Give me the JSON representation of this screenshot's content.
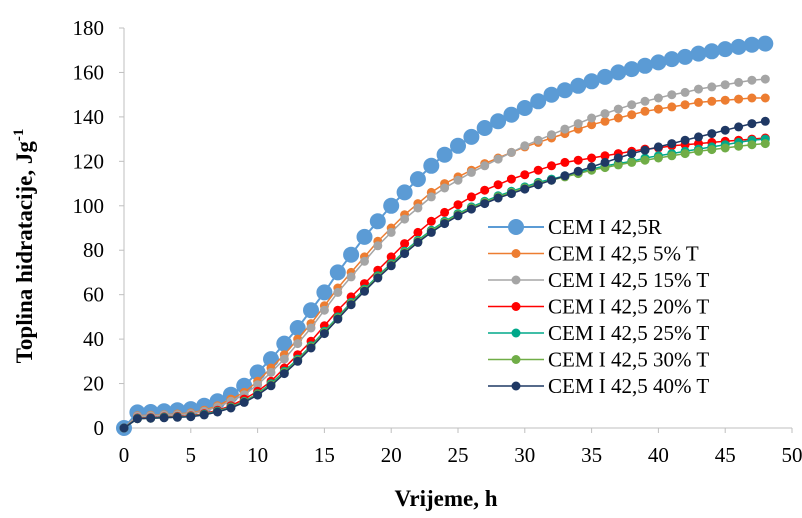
{
  "chart_data": {
    "type": "line",
    "xlabel": "Vrijeme, h",
    "ylabel": "Toplina hidratacije, Jg",
    "ylabel_superscript": "-1",
    "xlim": [
      0,
      50
    ],
    "ylim": [
      0,
      180
    ],
    "x_ticks": [
      "0",
      "5",
      "10",
      "15",
      "20",
      "25",
      "30",
      "35",
      "40",
      "45",
      "50"
    ],
    "y_ticks": [
      "0",
      "20",
      "40",
      "60",
      "80",
      "100",
      "120",
      "140",
      "160",
      "180"
    ],
    "grid": false,
    "legend_position": "center-right",
    "x": [
      0,
      1,
      2,
      3,
      4,
      5,
      6,
      7,
      8,
      9,
      10,
      11,
      12,
      13,
      14,
      15,
      16,
      17,
      18,
      19,
      20,
      21,
      22,
      23,
      24,
      25,
      26,
      27,
      28,
      29,
      30,
      31,
      32,
      33,
      34,
      35,
      36,
      37,
      38,
      39,
      40,
      41,
      42,
      43,
      44,
      45,
      46,
      47,
      48
    ],
    "series": [
      {
        "name": "CEM I 42,5R",
        "color": "#5b9bd5",
        "marker_radius": 8,
        "values": [
          0,
          7,
          7.2,
          7.5,
          8,
          8.5,
          10,
          12,
          15,
          19,
          25,
          31,
          38,
          45,
          53,
          61,
          70,
          78,
          86,
          93,
          100,
          106,
          112,
          118,
          123,
          127,
          131,
          135,
          138,
          141,
          144,
          147,
          150,
          152,
          154,
          156,
          158,
          160,
          161.5,
          163,
          164.5,
          166,
          167,
          168.5,
          169.5,
          170.5,
          171.5,
          172.5,
          173
        ]
      },
      {
        "name": "CEM I 42,5 5% T",
        "color": "#ed7d31",
        "marker_radius": 4.5,
        "values": [
          0,
          5.5,
          5.7,
          6,
          6.3,
          6.8,
          8,
          10,
          13,
          16,
          21,
          27,
          33,
          40,
          47,
          55,
          63,
          70,
          77,
          84,
          90,
          96,
          101,
          106,
          110,
          113,
          116,
          119,
          121.5,
          124,
          126.5,
          128.5,
          130.5,
          132.5,
          134.5,
          136.5,
          138,
          139.5,
          141,
          142.5,
          143.5,
          144.5,
          145.5,
          146.5,
          147,
          147.5,
          148,
          148.5,
          148.5
        ]
      },
      {
        "name": "CEM I 42,5 15% T",
        "color": "#a5a5a5",
        "marker_radius": 4.5,
        "values": [
          0,
          5.3,
          5.5,
          5.8,
          6,
          6.5,
          7.5,
          9.5,
          12,
          15,
          19.5,
          25,
          31,
          38,
          45,
          53,
          61,
          68,
          75,
          82,
          88,
          94,
          99,
          104,
          108,
          111.5,
          115,
          118,
          121,
          124,
          127,
          129.5,
          132,
          134.5,
          137,
          139.5,
          141.5,
          143.5,
          145.5,
          147,
          148.5,
          150,
          151,
          152.5,
          153.5,
          154.5,
          155.5,
          156.5,
          157
        ]
      },
      {
        "name": "CEM I 42,5 20% T",
        "color": "#ff0000",
        "marker_radius": 4.5,
        "values": [
          0,
          4.5,
          4.7,
          5,
          5.2,
          5.5,
          6.5,
          8,
          10,
          13,
          16.5,
          21,
          27,
          33,
          39,
          46,
          53,
          59,
          65,
          71,
          77,
          83,
          88,
          93,
          97,
          100.5,
          104,
          107,
          109.5,
          112,
          114,
          116,
          118,
          119.5,
          120.5,
          121.5,
          122.5,
          123.5,
          124.5,
          125.5,
          126,
          127,
          127.5,
          128,
          128.5,
          129,
          129.5,
          130,
          130.5
        ]
      },
      {
        "name": "CEM I 42,5 25% T",
        "color": "#00a88a",
        "marker_radius": 4.5,
        "values": [
          0,
          4.3,
          4.5,
          4.8,
          5,
          5.3,
          6.2,
          7.6,
          9.5,
          12,
          15.5,
          20,
          25.5,
          31,
          37,
          43.5,
          50,
          56.5,
          62.5,
          68.5,
          74,
          79.5,
          84.5,
          89,
          93,
          96.5,
          99.5,
          102,
          104.5,
          106.5,
          108.5,
          110.5,
          112,
          113.5,
          115,
          116.5,
          118,
          119,
          120,
          121.5,
          122.5,
          123.5,
          124.5,
          125.5,
          126.5,
          127.5,
          128.5,
          129.5,
          130
        ]
      },
      {
        "name": "CEM I 42,5 30% T",
        "color": "#70ad47",
        "marker_radius": 4.5,
        "values": [
          0,
          4.2,
          4.4,
          4.7,
          4.9,
          5.2,
          6,
          7.4,
          9.3,
          11.8,
          15.2,
          19.5,
          25,
          30.5,
          36.5,
          43,
          49.5,
          56,
          62,
          68,
          73.5,
          79,
          84,
          88.5,
          92.5,
          96,
          99,
          101.5,
          104,
          106,
          108,
          110,
          111.5,
          113,
          114.5,
          116,
          117.2,
          118.4,
          119.5,
          120.5,
          121.5,
          122.5,
          123.5,
          124.5,
          125.3,
          126,
          126.8,
          127.5,
          128
        ]
      },
      {
        "name": "CEM I 42,5 40% T",
        "color": "#1f3864",
        "marker_radius": 4.5,
        "values": [
          0,
          4.2,
          4.4,
          4.6,
          4.8,
          5.1,
          5.9,
          7.2,
          9,
          11.5,
          14.8,
          19,
          24.5,
          30,
          36,
          42.5,
          49,
          55.5,
          61.5,
          67.5,
          73,
          78.5,
          83.5,
          88,
          92,
          95.5,
          98.5,
          101,
          103.5,
          105.5,
          107.5,
          109.5,
          111.5,
          113.5,
          115.5,
          117.5,
          119.5,
          121.5,
          123.5,
          125,
          126.5,
          128,
          129.5,
          131,
          132.5,
          134,
          135.5,
          137,
          138
        ]
      }
    ]
  }
}
